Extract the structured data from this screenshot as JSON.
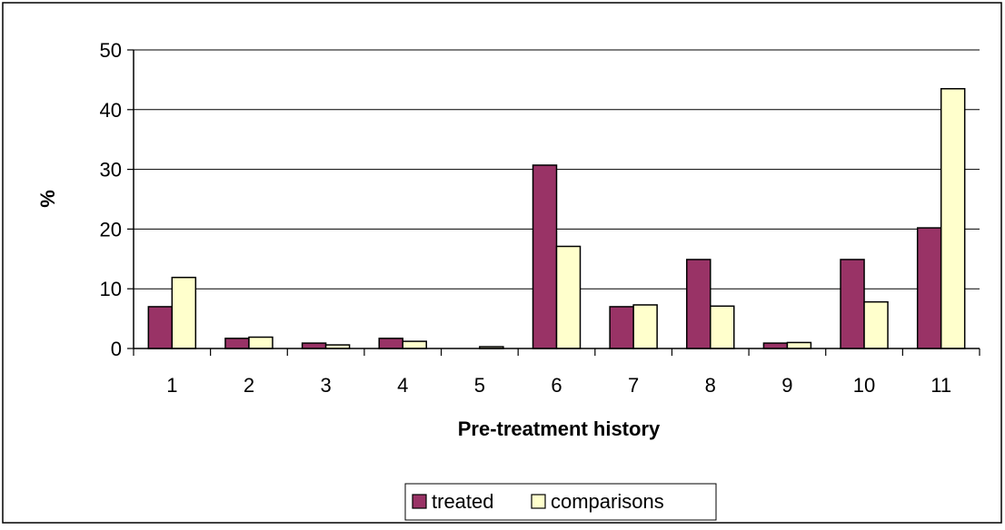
{
  "chart_data": {
    "type": "bar",
    "title": "",
    "xlabel": "Pre-treatment history",
    "ylabel": "%",
    "ylim": [
      0,
      50
    ],
    "yticks": [
      0,
      10,
      20,
      30,
      40,
      50
    ],
    "grid": true,
    "legend_position": "bottom-center",
    "categories": [
      "1",
      "2",
      "3",
      "4",
      "5",
      "6",
      "7",
      "8",
      "9",
      "10",
      "11"
    ],
    "series": [
      {
        "name": "treated",
        "color": "#993366",
        "values": [
          7.0,
          1.7,
          0.9,
          1.7,
          0.0,
          30.7,
          7.0,
          14.9,
          0.9,
          14.9,
          20.2
        ]
      },
      {
        "name": "comparisons",
        "color": "#ffffcc",
        "values": [
          11.9,
          1.9,
          0.6,
          1.2,
          0.3,
          17.1,
          7.3,
          7.1,
          1.0,
          7.8,
          43.5
        ]
      }
    ]
  }
}
